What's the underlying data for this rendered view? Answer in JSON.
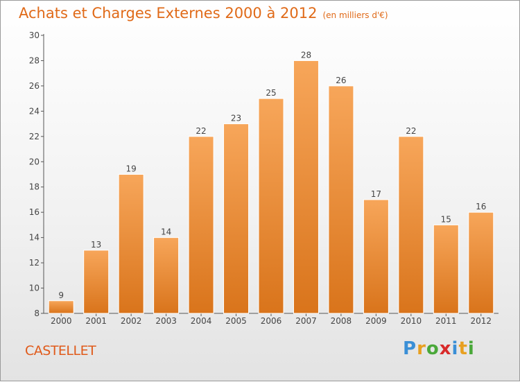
{
  "header": {
    "title": "Achats et Charges Externes 2000 à 2012",
    "unit": "(en milliers d'€)"
  },
  "footer": {
    "place": "CASTELLET",
    "brand_letters": [
      "P",
      "r",
      "o",
      "x",
      "i",
      "t",
      "i"
    ]
  },
  "colors": {
    "title": "#e06a18",
    "bar_top": "#f7a65a",
    "bar_bottom": "#d9741b",
    "brand": [
      "#3a8fd6",
      "#e8a020",
      "#4aa83a",
      "#d82a2a",
      "#3a8fd6",
      "#e8a020",
      "#4aa83a"
    ]
  },
  "chart_data": {
    "type": "bar",
    "title": "Achats et Charges Externes 2000 à 2012",
    "subtitle": "(en milliers d'€)",
    "categories": [
      "2000",
      "2001",
      "2002",
      "2003",
      "2004",
      "2005",
      "2006",
      "2007",
      "2008",
      "2009",
      "2010",
      "2011",
      "2012"
    ],
    "values": [
      9,
      13,
      19,
      14,
      22,
      23,
      25,
      28,
      26,
      17,
      22,
      15,
      16
    ],
    "ylim": [
      8,
      30
    ],
    "yticks": [
      8,
      10,
      12,
      14,
      16,
      18,
      20,
      22,
      24,
      26,
      28,
      30
    ],
    "grid": false,
    "data_labels": true
  }
}
